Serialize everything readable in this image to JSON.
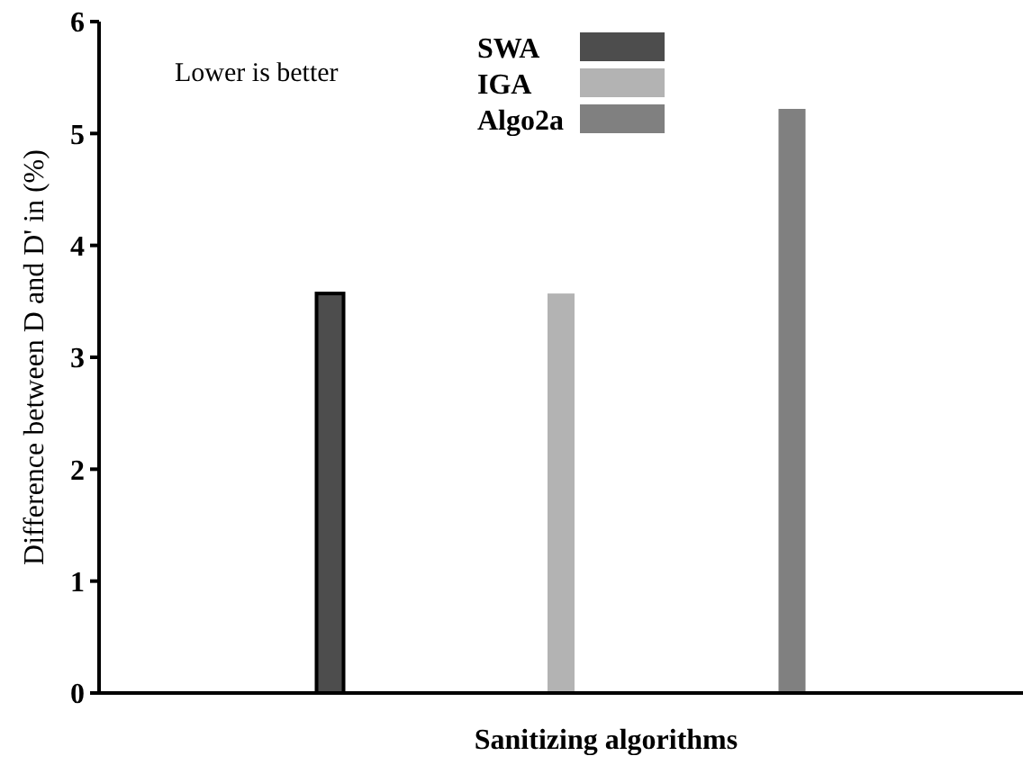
{
  "chart_data": {
    "type": "bar",
    "xlabel": "Sanitizing algorithms",
    "ylabel": "Difference between D and D' in (%)",
    "categories": [
      null,
      null,
      null
    ],
    "series": [
      {
        "name": "SWA",
        "color": "#4d4d4d",
        "values": [
          3.57,
          null,
          null
        ]
      },
      {
        "name": "IGA",
        "color": "#b3b3b3",
        "values": [
          null,
          3.57,
          null
        ]
      },
      {
        "name": "Algo2a",
        "color": "#808080",
        "values": [
          null,
          null,
          5.22
        ]
      }
    ],
    "ylim": [
      0,
      6
    ],
    "yticks": [
      0,
      1,
      2,
      3,
      4,
      5,
      6
    ],
    "grid": false,
    "legend": "top",
    "annotations": [
      "Lower is better"
    ]
  }
}
